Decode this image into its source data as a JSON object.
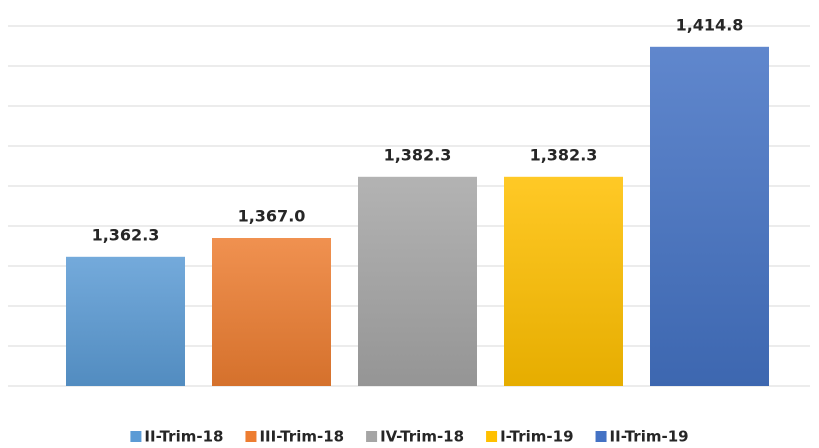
{
  "chart_data": {
    "type": "bar",
    "categories": [
      "II-Trim-18",
      "III-Trim-18",
      "IV-Trim-18",
      "I-Trim-19",
      "II-Trim-19"
    ],
    "values": [
      1362.3,
      1367.0,
      1382.3,
      1382.3,
      1414.8
    ],
    "value_labels": [
      "1,362.3",
      "1,367.0",
      "1,382.3",
      "1,382.3",
      "1,414.8"
    ],
    "colors": [
      "#5b9bd5",
      "#ed7d31",
      "#a5a5a5",
      "#ffc000",
      "#4472c4"
    ],
    "ylim": [
      1330,
      1420
    ],
    "yticks": [
      1330,
      1340,
      1350,
      1360,
      1370,
      1380,
      1390,
      1400,
      1410,
      1420
    ],
    "grid": true,
    "legend": "bottom"
  }
}
